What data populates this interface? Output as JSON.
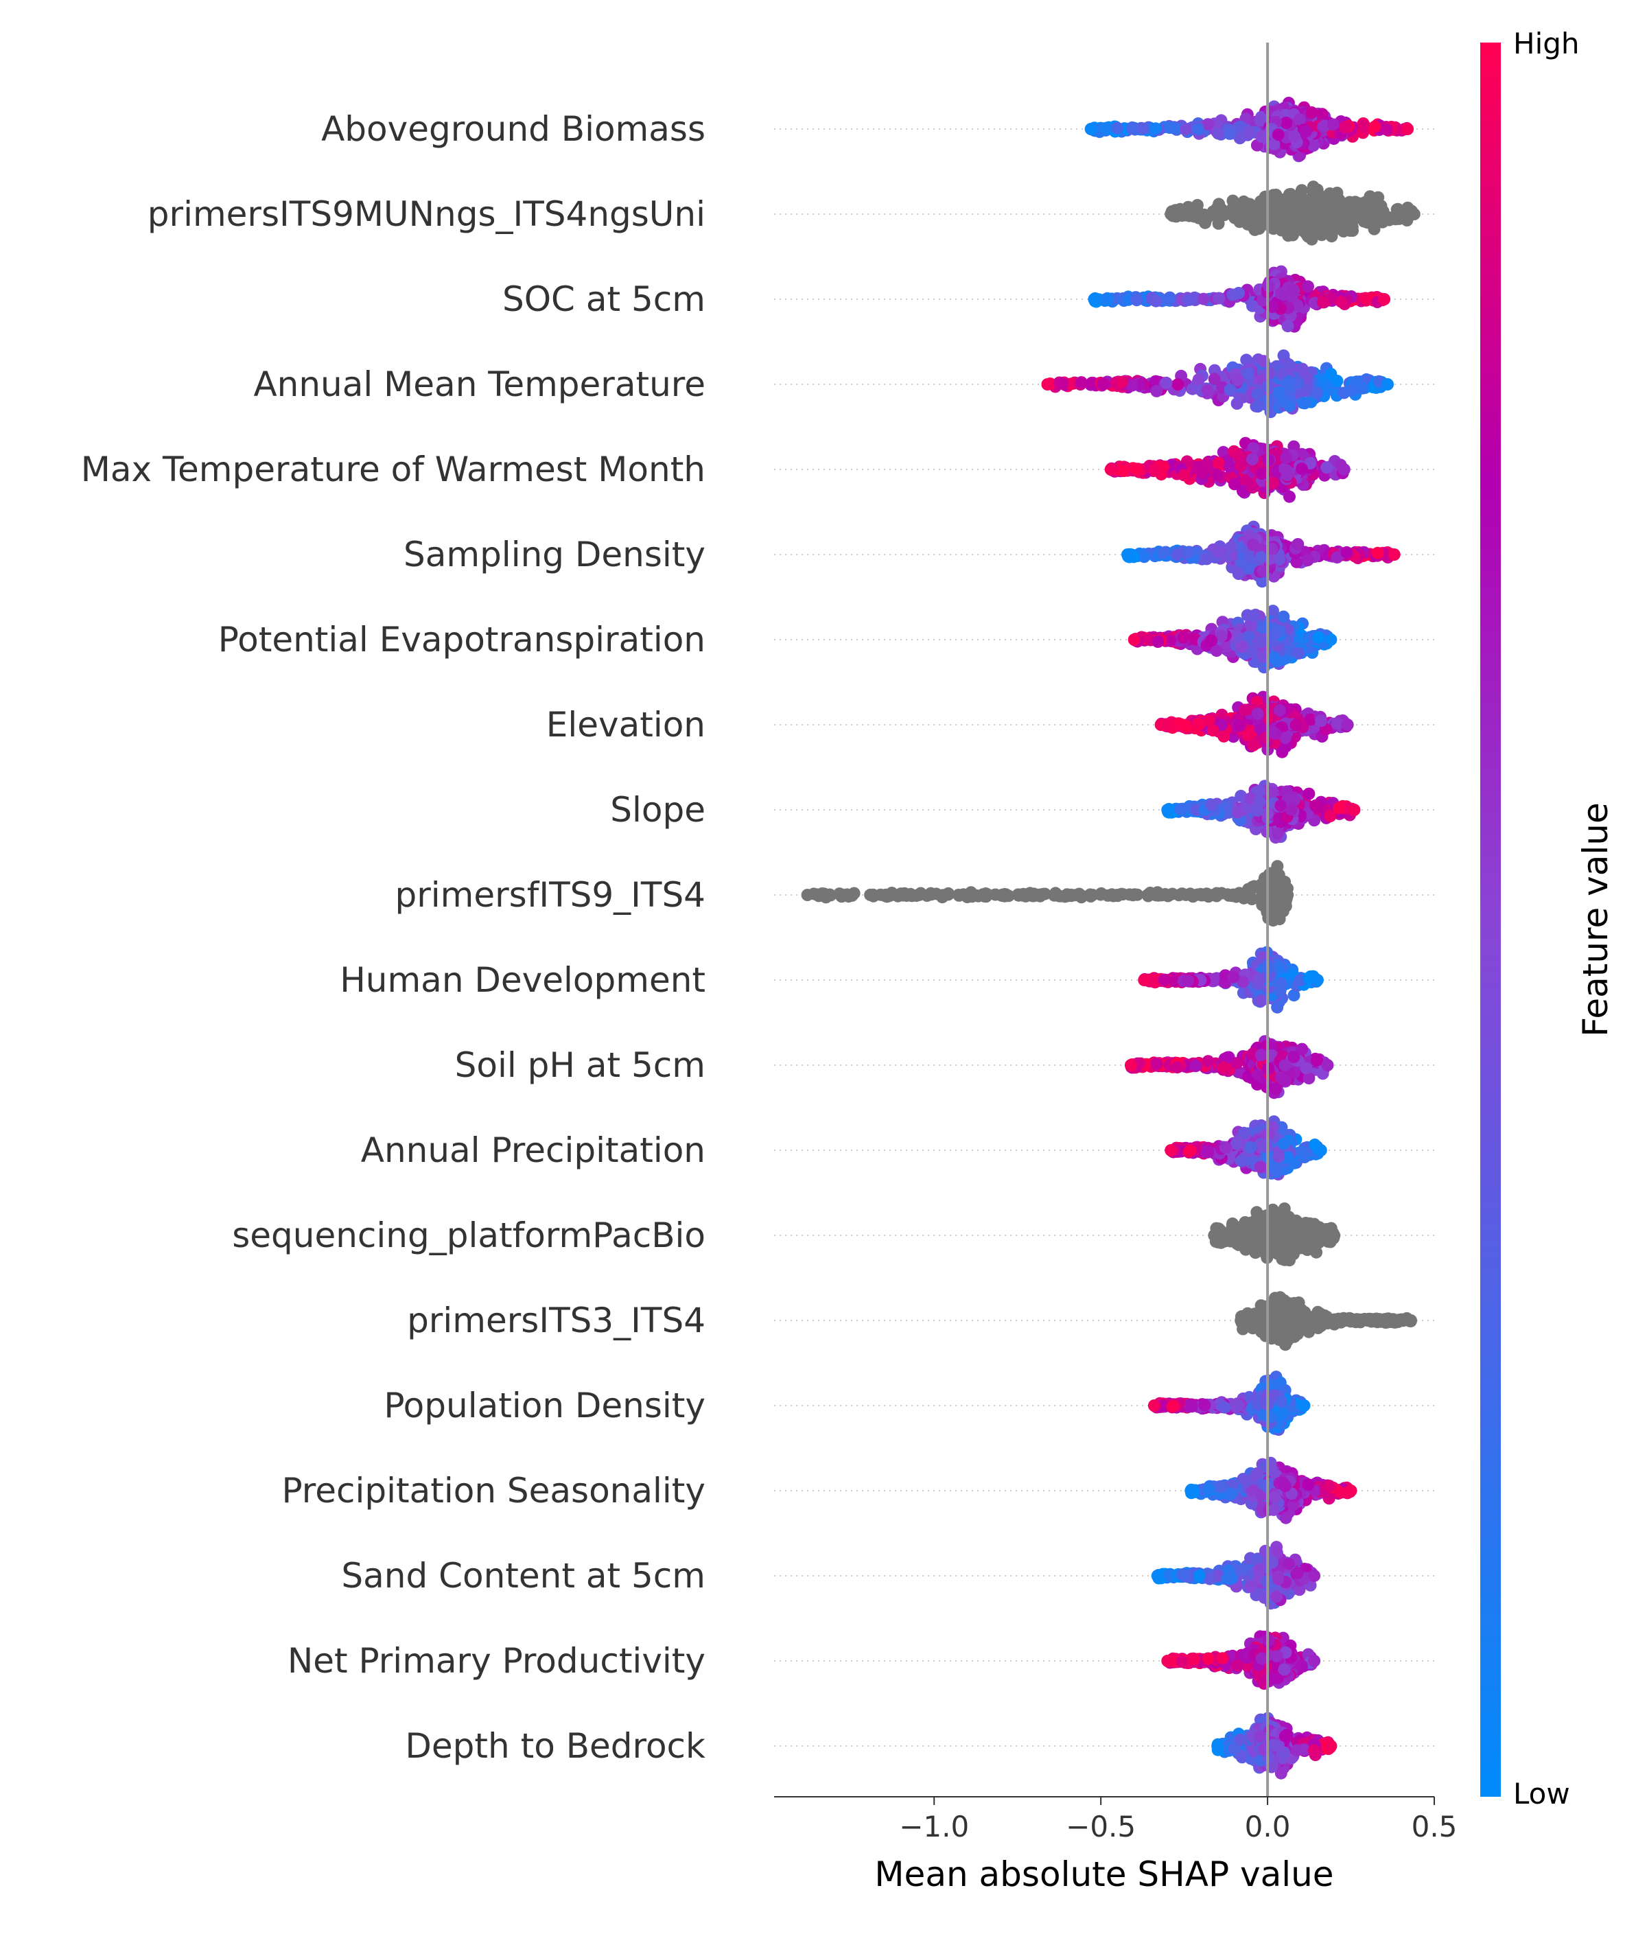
{
  "chart_data": {
    "type": "scatter",
    "subtype": "shap-beeswarm",
    "xlabel": "Mean absolute SHAP value",
    "xlim": [
      -1.48,
      0.5
    ],
    "xticks": [
      -1.0,
      -0.5,
      0.0,
      0.5
    ],
    "xtick_labels": [
      "−1.0",
      "−0.5",
      "0.0",
      "0.5"
    ],
    "grid": false,
    "colorbar": {
      "label": "Feature value",
      "high_label": "High",
      "low_label": "Low",
      "high_color": "#ff0052",
      "mid_color": "#b300b0",
      "low_color": "#008bfb",
      "position": "right"
    },
    "colors": {
      "positive": "#ff0052",
      "negative": "#008bfb",
      "neutral": "#757575",
      "zero_line": "#999999"
    },
    "features": [
      {
        "name": "Aboveground Biomass",
        "min": -0.53,
        "max": 0.42,
        "left_color": "low",
        "right_color": "high",
        "core": [
          -0.05,
          0.18
        ]
      },
      {
        "name": "primersITS9MUNngs_ITS4ngsUni",
        "min": -0.29,
        "max": 0.44,
        "left_color": "neutral",
        "right_color": "neutral",
        "core": [
          -0.08,
          0.3
        ]
      },
      {
        "name": "SOC at 5cm",
        "min": -0.52,
        "max": 0.35,
        "left_color": "low",
        "right_color": "high",
        "core": [
          -0.02,
          0.12
        ]
      },
      {
        "name": "Annual Mean Temperature",
        "min": -0.66,
        "max": 0.36,
        "left_color": "high",
        "right_color": "low",
        "core": [
          -0.15,
          0.17
        ]
      },
      {
        "name": "Max Temperature of Warmest Month",
        "min": -0.47,
        "max": 0.23,
        "left_color": "high",
        "right_color": "mid",
        "core": [
          -0.15,
          0.15
        ]
      },
      {
        "name": "Sampling Density",
        "min": -0.42,
        "max": 0.38,
        "left_color": "low",
        "right_color": "high",
        "core": [
          -0.12,
          0.06
        ]
      },
      {
        "name": "Potential Evapotranspiration",
        "min": -0.4,
        "max": 0.19,
        "left_color": "high",
        "right_color": "low",
        "core": [
          -0.12,
          0.1
        ]
      },
      {
        "name": "Elevation",
        "min": -0.32,
        "max": 0.24,
        "left_color": "high",
        "right_color": "mid",
        "core": [
          -0.1,
          0.1
        ]
      },
      {
        "name": "Slope",
        "min": -0.3,
        "max": 0.26,
        "left_color": "low",
        "right_color": "high",
        "core": [
          -0.07,
          0.12
        ]
      },
      {
        "name": "primersfITS9_ITS4",
        "min": -1.38,
        "max": 0.06,
        "left_color": "neutral",
        "right_color": "neutral",
        "core": [
          -0.02,
          0.06
        ]
      },
      {
        "name": "Human Development",
        "min": -0.37,
        "max": 0.15,
        "left_color": "high",
        "right_color": "low",
        "core": [
          -0.05,
          0.06
        ]
      },
      {
        "name": "Soil pH at 5cm",
        "min": -0.41,
        "max": 0.18,
        "left_color": "high",
        "right_color": "mid",
        "core": [
          -0.06,
          0.1
        ]
      },
      {
        "name": "Annual Precipitation",
        "min": -0.29,
        "max": 0.16,
        "left_color": "high",
        "right_color": "low",
        "core": [
          -0.08,
          0.08
        ]
      },
      {
        "name": "sequencing_platformPacBio",
        "min": -0.16,
        "max": 0.2,
        "left_color": "neutral",
        "right_color": "neutral",
        "core": [
          -0.08,
          0.12
        ]
      },
      {
        "name": "primersITS3_ITS4",
        "min": -0.08,
        "max": 0.43,
        "left_color": "neutral",
        "right_color": "neutral",
        "core": [
          -0.02,
          0.1
        ]
      },
      {
        "name": "Population Density",
        "min": -0.34,
        "max": 0.11,
        "left_color": "high",
        "right_color": "low",
        "core": [
          -0.03,
          0.06
        ]
      },
      {
        "name": "Precipitation Seasonality",
        "min": -0.23,
        "max": 0.25,
        "left_color": "low",
        "right_color": "high",
        "core": [
          -0.06,
          0.1
        ]
      },
      {
        "name": "Sand Content at 5cm",
        "min": -0.33,
        "max": 0.14,
        "left_color": "low",
        "right_color": "mid",
        "core": [
          -0.06,
          0.08
        ]
      },
      {
        "name": "Net Primary Productivity",
        "min": -0.3,
        "max": 0.14,
        "left_color": "high",
        "right_color": "mid",
        "core": [
          -0.06,
          0.08
        ]
      },
      {
        "name": "Depth to Bedrock",
        "min": -0.15,
        "max": 0.19,
        "left_color": "low",
        "right_color": "high",
        "core": [
          -0.06,
          0.08
        ]
      }
    ]
  }
}
